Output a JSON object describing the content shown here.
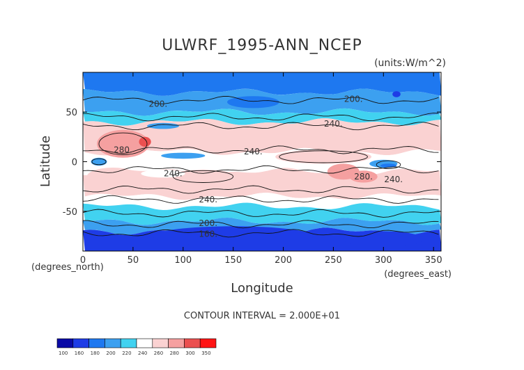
{
  "chart_data": {
    "type": "heatmap",
    "title": "ULWRF_1995-ANN_NCEP",
    "units": "(units:W/m^2)",
    "xlabel": "Longitude",
    "ylabel": "Latitude",
    "x_unit_label": "(degrees_east)",
    "y_unit_label": "(degrees_north)",
    "xlim": [
      0,
      357.5
    ],
    "ylim": [
      -90,
      90
    ],
    "x_ticks": [
      0,
      50,
      100,
      150,
      200,
      250,
      300,
      350
    ],
    "y_ticks": [
      -50,
      0,
      50
    ],
    "contour_interval_text": "CONTOUR INTERVAL = 2.000E+01",
    "contour_labels": [
      {
        "text": "200.",
        "lon": 75,
        "lat": 58
      },
      {
        "text": "200.",
        "lon": 270,
        "lat": 63
      },
      {
        "text": "240.",
        "lon": 250,
        "lat": 38
      },
      {
        "text": "240.",
        "lon": 170,
        "lat": 10
      },
      {
        "text": "280.",
        "lon": 40,
        "lat": 12
      },
      {
        "text": "240.",
        "lon": 90,
        "lat": -12
      },
      {
        "text": "280.",
        "lon": 280,
        "lat": -15
      },
      {
        "text": "240.",
        "lon": 310,
        "lat": -18
      },
      {
        "text": "240.",
        "lon": 125,
        "lat": -38
      },
      {
        "text": "200.",
        "lon": 125,
        "lat": -62
      },
      {
        "text": "160.",
        "lon": 125,
        "lat": -73
      }
    ],
    "colorbar": {
      "levels": [
        "100",
        "160",
        "180",
        "200",
        "220",
        "240",
        "260",
        "280",
        "300",
        "350"
      ],
      "colors": [
        "#0a0aa6",
        "#1e3ce6",
        "#1e78f0",
        "#3ca0f0",
        "#41d2f0",
        "#ffffff",
        "#fad2d2",
        "#f5a0a0",
        "#eb5050",
        "#ff1414"
      ]
    },
    "zones": [
      {
        "lat": [
          70,
          90
        ],
        "value": 190
      },
      {
        "lat": [
          50,
          70
        ],
        "value": 210
      },
      {
        "lat": [
          40,
          50
        ],
        "value": 235
      },
      {
        "lat": [
          10,
          40
        ],
        "value": 265
      },
      {
        "lat": [
          -10,
          10
        ],
        "value": 245
      },
      {
        "lat": [
          -35,
          -10
        ],
        "value": 265
      },
      {
        "lat": [
          -45,
          -35
        ],
        "value": 245
      },
      {
        "lat": [
          -60,
          -45
        ],
        "value": 225
      },
      {
        "lat": [
          -70,
          -60
        ],
        "value": 205
      },
      {
        "lat": [
          -90,
          -70
        ],
        "value": 170
      }
    ]
  }
}
